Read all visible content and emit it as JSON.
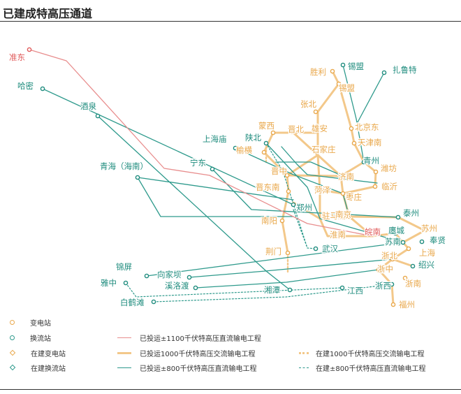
{
  "title": "已建成特高压通道",
  "colors": {
    "line_1100": "#e88d8d",
    "line_1000": "#f3c88a",
    "line_800": "#2e9a8c",
    "station_orange_text": "#e9a84c",
    "station_teal_text": "#1f8c7e",
    "station_red_text": "#e05a5a"
  },
  "stations": [
    {
      "label": "准东",
      "tone": "red"
    },
    {
      "label": "哈密",
      "tone": "teal"
    },
    {
      "label": "酒泉",
      "tone": "teal"
    },
    {
      "label": "青海（海南）",
      "tone": "teal"
    },
    {
      "label": "宁东",
      "tone": "teal"
    },
    {
      "label": "上海庙",
      "tone": "teal"
    },
    {
      "label": "陕北",
      "tone": "teal"
    },
    {
      "label": "胜利",
      "tone": "orange"
    },
    {
      "label": "锡盟",
      "tone": "teal"
    },
    {
      "label": "锡盟",
      "tone": "orange"
    },
    {
      "label": "扎鲁特",
      "tone": "teal"
    },
    {
      "label": "张北",
      "tone": "orange"
    },
    {
      "label": "蒙西",
      "tone": "orange"
    },
    {
      "label": "晋北",
      "tone": "orange"
    },
    {
      "label": "雄安",
      "tone": "orange"
    },
    {
      "label": "北京东",
      "tone": "orange"
    },
    {
      "label": "天津南",
      "tone": "orange"
    },
    {
      "label": "榆横",
      "tone": "orange"
    },
    {
      "label": "石家庄",
      "tone": "orange"
    },
    {
      "label": "青州",
      "tone": "teal"
    },
    {
      "label": "晋中",
      "tone": "orange"
    },
    {
      "label": "济南",
      "tone": "orange"
    },
    {
      "label": "潍坊",
      "tone": "orange"
    },
    {
      "label": "临沂",
      "tone": "orange"
    },
    {
      "label": "晋东南",
      "tone": "orange"
    },
    {
      "label": "菏泽",
      "tone": "orange"
    },
    {
      "label": "枣庄",
      "tone": "orange"
    },
    {
      "label": "郑州",
      "tone": "teal"
    },
    {
      "label": "驻马店",
      "tone": "orange"
    },
    {
      "label": "南京",
      "tone": "orange"
    },
    {
      "label": "泰州",
      "tone": "teal"
    },
    {
      "label": "南阳",
      "tone": "orange"
    },
    {
      "label": "淮南",
      "tone": "orange"
    },
    {
      "label": "皖南",
      "tone": "red"
    },
    {
      "label": "廛城",
      "tone": "teal"
    },
    {
      "label": "苏州",
      "tone": "orange"
    },
    {
      "label": "苏南",
      "tone": "teal"
    },
    {
      "label": "奉贤",
      "tone": "teal"
    },
    {
      "label": "上海",
      "tone": "orange"
    },
    {
      "label": "荆门",
      "tone": "orange"
    },
    {
      "label": "武汉",
      "tone": "teal"
    },
    {
      "label": "浙北",
      "tone": "orange"
    },
    {
      "label": "绍兴",
      "tone": "teal"
    },
    {
      "label": "锦屏",
      "tone": "teal"
    },
    {
      "label": "向家坝",
      "tone": "teal"
    },
    {
      "label": "浙中",
      "tone": "orange"
    },
    {
      "label": "雅中",
      "tone": "teal"
    },
    {
      "label": "溪洛渡",
      "tone": "teal"
    },
    {
      "label": "湘潭",
      "tone": "teal"
    },
    {
      "label": "江西",
      "tone": "teal"
    },
    {
      "label": "浙西",
      "tone": "teal"
    },
    {
      "label": "浙南",
      "tone": "orange"
    },
    {
      "label": "白鹤滩",
      "tone": "teal"
    },
    {
      "label": "福州",
      "tone": "orange"
    }
  ],
  "legend": {
    "substation": "变电站",
    "converter": "换流站",
    "substation_building": "在建变电站",
    "converter_building": "在建换流站",
    "line_1100": "已投运±1100千伏特高压直流输电工程",
    "line_1000": "已投运1000千伏特高压交流输电工程",
    "line_800": "已投运±800千伏特高压直流输电工程",
    "line_1000_building": "在建1000千伏特高压交流输电工程",
    "line_800_building": "在建±800千伏特高压直流输电工程"
  }
}
